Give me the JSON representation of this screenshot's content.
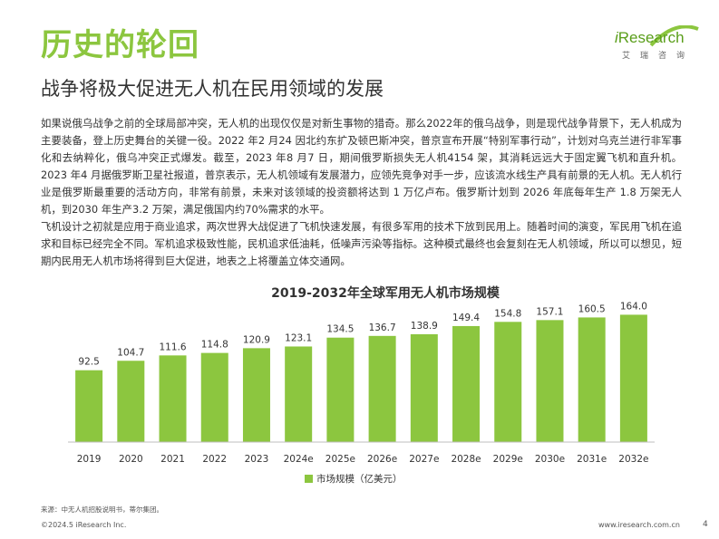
{
  "header": {
    "title": "历史的轮回",
    "subtitle": "战争将极大促进无人机在民用领域的发展"
  },
  "logo": {
    "wordmark_i": "i",
    "wordmark_rest": "Research",
    "cn": "艾瑞咨询"
  },
  "body": {
    "paragraph1": "如果说俄乌战争之前的全球局部冲突，无人机的出现仅仅是对新生事物的猎奇。那么2022年的俄乌战争，则是现代战争背景下，无人机成为主要装备，登上历史舞台的关键一役。2022 年2 月24 因北约东扩及顿巴斯冲突，普京宣布开展“特别军事行动”，计划对乌克兰进行非军事化和去纳粹化，俄乌冲突正式爆发。截至，2023 年8 月7 日，期间俄罗斯损失无人机4154 架，其消耗远远大于固定翼飞机和直升机。2023 年4 月据俄罗斯卫星社报道，普京表示，无人机领域有发展潜力，应领先竞争对手一步，应该流水线生产具有前景的无人机。无人机行业是俄罗斯最重要的活动方向，非常有前景，未来对该领域的投资额将达到 1 万亿卢布。俄罗斯计划到 2026 年底每年生产 1.8 万架无人机，到2030 年生产3.2 万架，满足俄国内约70%需求的水平。",
    "paragraph2": "飞机设计之初就是应用于商业追求，两次世界大战促进了飞机快速发展，有很多军用的技术下放到民用上。随着时间的演变，军民用飞机在追求和目标已经完全不同。军机追求极致性能，民机追求低油耗，低噪声污染等指标。这种模式最终也会复刻在无人机领域，所以可以想见，短期内民用无人机市场将得到巨大促进，地表之上将覆盖立体交通网。"
  },
  "chart_data": {
    "type": "bar",
    "title": "2019-2032年全球军用无人机市场规模",
    "categories": [
      "2019",
      "2020",
      "2021",
      "2022",
      "2023",
      "2024e",
      "2025e",
      "2026e",
      "2027e",
      "2028e",
      "2029e",
      "2030e",
      "2031e",
      "2032e"
    ],
    "series": [
      {
        "name": "市场规模（亿美元）",
        "values": [
          92.5,
          104.7,
          111.6,
          114.8,
          120.9,
          123.1,
          134.5,
          136.7,
          138.9,
          149.4,
          154.8,
          157.1,
          160.5,
          164.0
        ],
        "value_labels": [
          "92.5",
          "104.7",
          "111.6",
          "114.8",
          "120.9",
          "123.1",
          "134.5",
          "136.7",
          "138.9",
          "149.4",
          "154.8",
          "157.1",
          "160.5",
          "164.0"
        ],
        "color": "#8cc63f"
      }
    ],
    "ylim": [
      0,
      175
    ],
    "xlabel": "",
    "ylabel": "",
    "grid": false,
    "legend_position": "bottom"
  },
  "footer": {
    "source": "来源：中无人机招股说明书，蒂尔集团。",
    "copyright": "©2024.5 iResearch Inc.",
    "website": "www.iresearch.com.cn",
    "page": "4"
  }
}
